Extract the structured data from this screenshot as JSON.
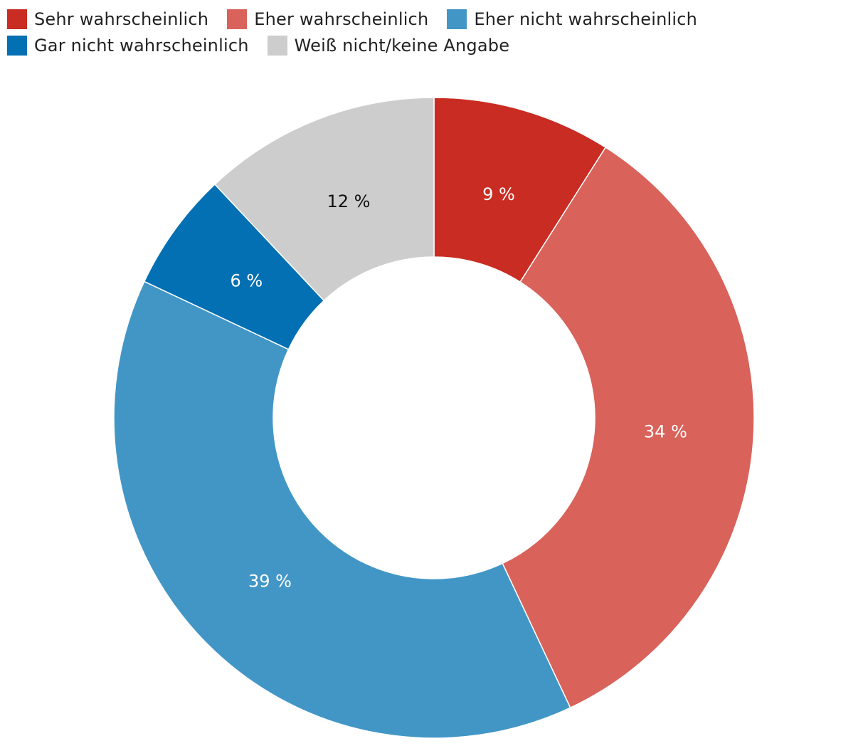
{
  "chart_data": {
    "type": "pie",
    "title": "",
    "legend_position": "top-left",
    "donut": true,
    "categories": [
      "Sehr wahrscheinlich",
      "Eher wahrscheinlich",
      "Eher nicht wahrscheinlich",
      "Gar nicht wahrscheinlich",
      "Weiß nicht/keine Angabe"
    ],
    "values": [
      9,
      34,
      39,
      6,
      12
    ],
    "labels": [
      "9 %",
      "34 %",
      "39 %",
      "6 %",
      "12 %"
    ],
    "colors": [
      "#c92c22",
      "#d9625a",
      "#4296c6",
      "#0270b2",
      "#cdcdcd"
    ],
    "label_colors": [
      "#ffffff",
      "#ffffff",
      "#ffffff",
      "#ffffff",
      "#111111"
    ]
  }
}
